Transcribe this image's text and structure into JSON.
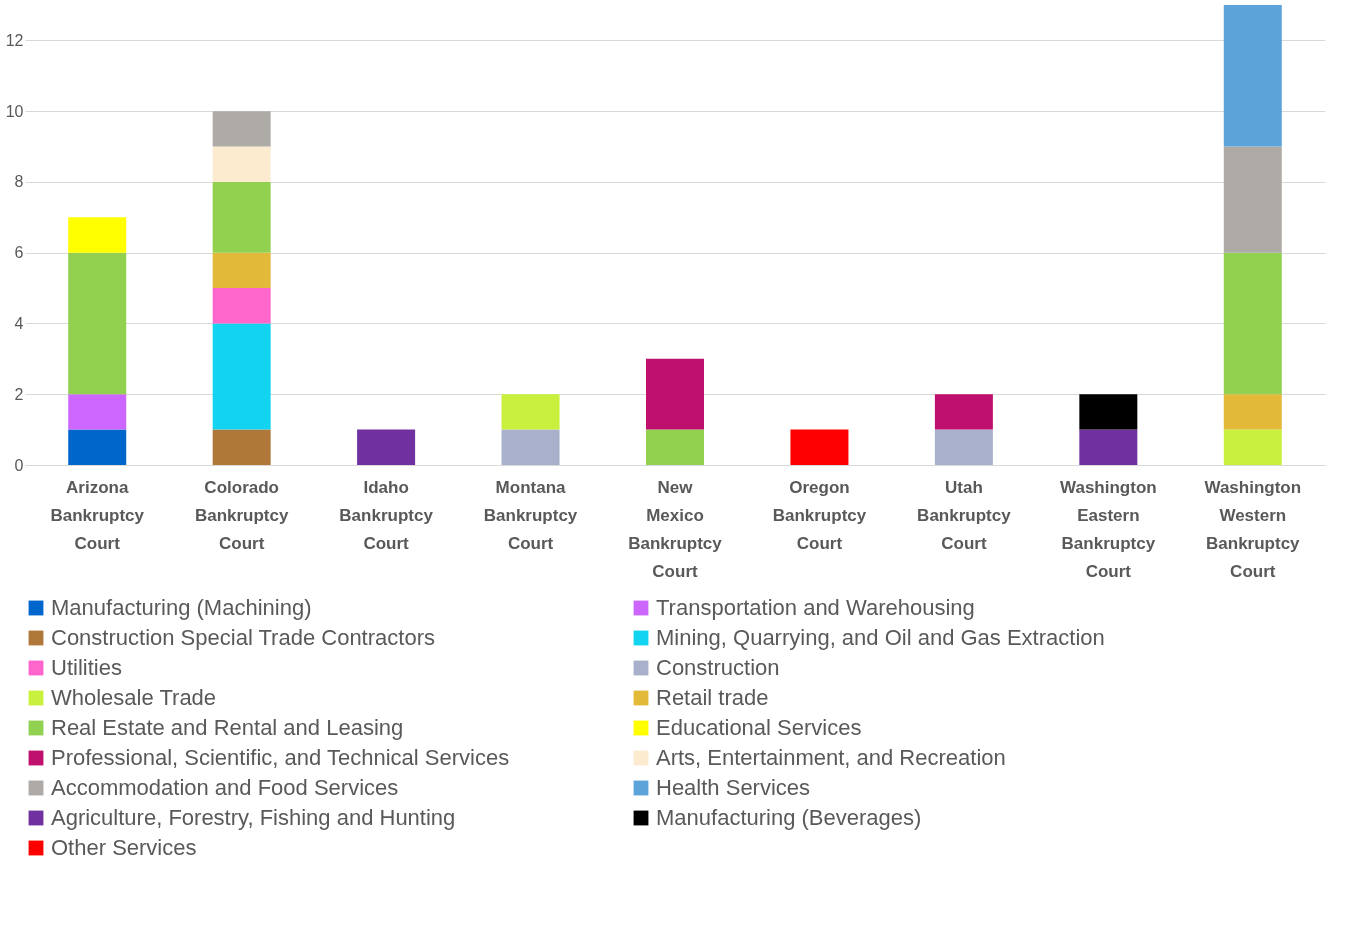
{
  "chart_data": {
    "type": "bar",
    "stacked": true,
    "categories": [
      "Arizona Bankruptcy Court",
      "Colorado Bankruptcy Court",
      "Idaho Bankruptcy Court",
      "Montana Bankruptcy Court",
      "New Mexico Bankruptcy Court",
      "Oregon Bankruptcy Court",
      "Utah Bankruptcy Court",
      "Washington Eastern Bankruptcy Court",
      "Washington Western Bankruptcy Court"
    ],
    "series": [
      {
        "name": "Manufacturing (Machining)",
        "color": "#0066cc",
        "values": [
          1,
          null,
          null,
          null,
          null,
          null,
          null,
          null,
          null
        ]
      },
      {
        "name": "Transportation and Warehousing",
        "color": "#cc66ff",
        "values": [
          1,
          null,
          null,
          null,
          null,
          null,
          null,
          null,
          null
        ]
      },
      {
        "name": "Construction Special Trade Contractors",
        "color": "#b07838",
        "values": [
          null,
          1,
          null,
          null,
          null,
          null,
          null,
          null,
          null
        ]
      },
      {
        "name": "Mining, Quarrying, and Oil and Gas Extraction",
        "color": "#12d4f0",
        "values": [
          null,
          3,
          null,
          null,
          null,
          null,
          null,
          null,
          null
        ]
      },
      {
        "name": "Utilities",
        "color": "#ff66cc",
        "values": [
          null,
          1,
          null,
          null,
          null,
          null,
          null,
          null,
          null
        ]
      },
      {
        "name": "Construction",
        "color": "#a9b0cc",
        "values": [
          null,
          null,
          null,
          1,
          null,
          null,
          1,
          null,
          null
        ]
      },
      {
        "name": "Wholesale Trade",
        "color": "#c8f03c",
        "values": [
          null,
          null,
          null,
          1,
          null,
          null,
          null,
          null,
          1
        ]
      },
      {
        "name": "Retail trade",
        "color": "#e3b93a",
        "values": [
          null,
          1,
          null,
          null,
          null,
          null,
          null,
          null,
          1
        ]
      },
      {
        "name": "Real Estate and Rental and Leasing",
        "color": "#92d050",
        "values": [
          4,
          2,
          null,
          null,
          1,
          null,
          null,
          null,
          4
        ]
      },
      {
        "name": "Educational Services",
        "color": "#ffff00",
        "values": [
          1,
          null,
          null,
          null,
          null,
          null,
          null,
          null,
          null
        ]
      },
      {
        "name": "Professional, Scientific, and Technical Services",
        "color": "#c0106e",
        "values": [
          null,
          null,
          null,
          null,
          2,
          null,
          1,
          null,
          null
        ]
      },
      {
        "name": "Arts, Entertainment, and Recreation",
        "color": "#fdebd0",
        "values": [
          null,
          1,
          null,
          null,
          null,
          null,
          null,
          null,
          null
        ]
      },
      {
        "name": "Accommodation and Food Services",
        "color": "#aeaaa6",
        "values": [
          null,
          1,
          null,
          null,
          null,
          null,
          null,
          null,
          3
        ]
      },
      {
        "name": "Health Services",
        "color": "#5ba3d9",
        "values": [
          null,
          null,
          null,
          null,
          null,
          null,
          null,
          null,
          4
        ]
      },
      {
        "name": "Agriculture, Forestry, Fishing and Hunting",
        "color": "#7030a0",
        "values": [
          null,
          null,
          1,
          null,
          null,
          null,
          null,
          1,
          null
        ]
      },
      {
        "name": "Manufacturing (Beverages)",
        "color": "#000000",
        "values": [
          null,
          null,
          null,
          null,
          null,
          null,
          null,
          1,
          null
        ]
      },
      {
        "name": "Other Services",
        "color": "#ff0000",
        "values": [
          null,
          null,
          null,
          null,
          null,
          1,
          null,
          null,
          null
        ]
      }
    ],
    "ylim": [
      0,
      13
    ],
    "yticks": [
      0,
      2,
      4,
      6,
      8,
      10,
      12
    ],
    "grid": "y",
    "legend": "bottom"
  }
}
